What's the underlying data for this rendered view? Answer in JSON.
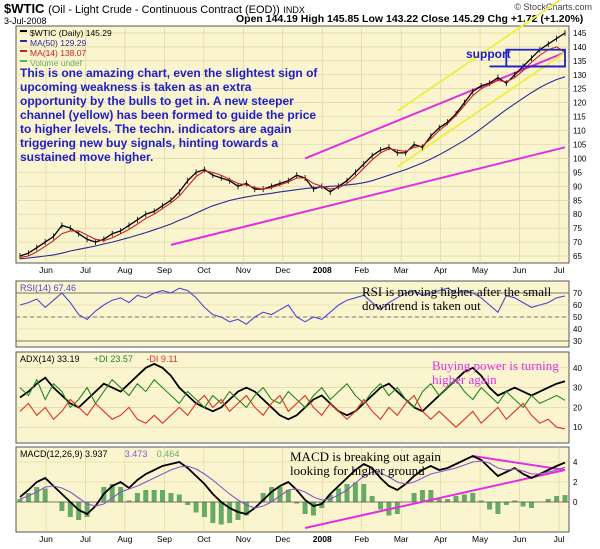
{
  "header": {
    "symbol": "$WTIC",
    "name": "(Oil - Light Crude - Continuous Contract (EOD))",
    "exchange": "INDX",
    "date": "3-Jul-2008",
    "ohlc": "Open 144.19  High 145.85  Low 143.22  Close 145.29  Chg +1.72 (+1.20%)",
    "watermark": "© StockCharts.com"
  },
  "colors": {
    "price": "#000000",
    "ma50": "#2a2a9a",
    "ma14": "#cc2020",
    "channel": "#e030e0",
    "yellow": "#eeee44",
    "rsi": "#4a4acc",
    "adx": "#000000",
    "plus_di": "#228822",
    "minus_di": "#dd3322",
    "macd": "#000000",
    "signal": "#8855cc",
    "hist": "#66aa66",
    "ann_blue": "#1f20c8",
    "ann_pink": "#e030e0"
  },
  "chart_data": [
    {
      "type": "line",
      "panel": "price",
      "legend": [
        {
          "label": "$WTIC (Daily) 145.29",
          "color": "#000000"
        },
        {
          "label": "MA(50) 129.29",
          "color": "#2a2a9a"
        },
        {
          "label": "MA(14) 138.07",
          "color": "#cc2020"
        },
        {
          "label": "Volume undef",
          "color": "#66aa66"
        }
      ],
      "x_labels": [
        "Jun",
        "Jul",
        "Aug",
        "Sep",
        "Oct",
        "Nov",
        "Dec",
        "2008",
        "Feb",
        "Mar",
        "Apr",
        "May",
        "Jun",
        "Jul"
      ],
      "y_ticks": [
        65,
        70,
        75,
        80,
        85,
        90,
        95,
        100,
        105,
        110,
        115,
        120,
        125,
        130,
        135,
        140,
        145
      ],
      "ylim": [
        62.5,
        147.5
      ],
      "series": [
        {
          "key": "close",
          "values": [
            65,
            66,
            68,
            70,
            72,
            76,
            75,
            73,
            71,
            70,
            71,
            73,
            74,
            76,
            78,
            80,
            81,
            83,
            85,
            88,
            92,
            95,
            96,
            94,
            93,
            92,
            90,
            91,
            89,
            89,
            90,
            91,
            92,
            94,
            93,
            89,
            90,
            88,
            90,
            92,
            95,
            98,
            101,
            103,
            104,
            102,
            102,
            105,
            104,
            108,
            111,
            113,
            116,
            120,
            124,
            126,
            127,
            129,
            127,
            130,
            133,
            136,
            139,
            141,
            143,
            145
          ]
        },
        {
          "key": "ma50",
          "values": [
            64,
            64.3,
            64.6,
            65,
            65.4,
            66,
            66.8,
            67.4,
            68,
            68.6,
            69.3,
            70,
            70.8,
            71.6,
            72.5,
            73.4,
            74.4,
            75.4,
            76.5,
            77.8,
            79,
            80.4,
            81.8,
            83,
            84,
            84.9,
            85.6,
            86.2,
            86.7,
            87.1,
            87.5,
            88,
            88.4,
            88.8,
            89.2,
            89.5,
            89.8,
            90,
            90.2,
            90.5,
            90.8,
            91.3,
            92,
            93,
            94,
            95,
            96,
            97.2,
            98.4,
            99.8,
            101.3,
            103,
            104.7,
            106.5,
            108.5,
            110.7,
            113,
            115.3,
            117.5,
            119.6,
            121.6,
            123.6,
            125.4,
            127,
            128.3,
            129.29
          ]
        },
        {
          "key": "ma14",
          "values": [
            64.5,
            65,
            66.5,
            68.5,
            70.5,
            73,
            74,
            74,
            72.5,
            71,
            70.5,
            71.5,
            73,
            74.5,
            76.5,
            78.5,
            80,
            82,
            84,
            86.5,
            90,
            93.5,
            95.5,
            95,
            94,
            92.5,
            91,
            90.5,
            89.5,
            89,
            89.5,
            90.5,
            91.5,
            93,
            93,
            91,
            90,
            89,
            89.5,
            91,
            93.5,
            96.5,
            99.5,
            102,
            103.5,
            103,
            102.5,
            104,
            104.5,
            107,
            110,
            112.5,
            115.5,
            119,
            122.5,
            125,
            126.5,
            128,
            127.5,
            129,
            131.5,
            134.5,
            137,
            139,
            140,
            138.07
          ]
        }
      ],
      "trendlines": [
        {
          "name": "lower-channel",
          "color": "#e030e0",
          "points": [
            [
              18,
              69
            ],
            [
              65,
              104
            ]
          ]
        },
        {
          "name": "upper-channel",
          "color": "#e030e0",
          "points": [
            [
              34,
              100
            ],
            [
              65,
              138
            ]
          ]
        },
        {
          "name": "yellow-lower",
          "color": "#eeee44",
          "points": [
            [
              45,
              97
            ],
            [
              65,
              138
            ]
          ]
        },
        {
          "name": "yellow-upper",
          "color": "#eeee44",
          "points": [
            [
              45,
              117
            ],
            [
              65,
              158
            ]
          ]
        }
      ],
      "annotations": [
        {
          "text": "This is one amazing chart, even the slightest sign of upcoming weakness is taken as an extra opportunity by the bulls to get in. A new steeper channel (yellow) has been formed to guide the price to higher levels. The techn. indicators are again triggering new buy signals, hinting towards a sustained move higher."
        },
        {
          "text": "support"
        }
      ]
    },
    {
      "type": "line",
      "panel": "rsi",
      "legend": [
        {
          "label": "RSI(14) 67.46",
          "color": "#4a4acc"
        }
      ],
      "y_ticks": [
        30,
        40,
        50,
        60,
        70
      ],
      "ylim": [
        25,
        80
      ],
      "series": [
        {
          "key": "rsi",
          "values": [
            60,
            62,
            65,
            58,
            64,
            70,
            62,
            52,
            48,
            55,
            60,
            64,
            66,
            62,
            68,
            66,
            70,
            72,
            70,
            74,
            72,
            66,
            58,
            52,
            50,
            46,
            48,
            44,
            50,
            54,
            52,
            56,
            60,
            50,
            46,
            50,
            48,
            54,
            60,
            64,
            66,
            68,
            62,
            56,
            62,
            66,
            70,
            72,
            68,
            70,
            72,
            74,
            70,
            72,
            70,
            66,
            60,
            54,
            68,
            66,
            62,
            58,
            60,
            62,
            66,
            67.46
          ]
        }
      ],
      "annotations": [
        {
          "text": "RSI is moving higher after the small downtrend is taken out"
        }
      ]
    },
    {
      "type": "line",
      "panel": "adx",
      "legend": [
        {
          "label": "ADX(14) 33.19",
          "color": "#000000"
        },
        {
          "label": "+DI 23.57",
          "color": "#228822"
        },
        {
          "label": "-DI 9.11",
          "color": "#dd3322"
        }
      ],
      "y_ticks": [
        10,
        20,
        30,
        40
      ],
      "ylim": [
        2,
        48
      ],
      "series": [
        {
          "key": "adx",
          "values": [
            25,
            28,
            32,
            35,
            30,
            26,
            22,
            20,
            24,
            28,
            32,
            30,
            28,
            32,
            36,
            40,
            42,
            40,
            36,
            30,
            26,
            22,
            20,
            18,
            20,
            24,
            28,
            30,
            28,
            24,
            20,
            16,
            14,
            16,
            20,
            24,
            26,
            22,
            18,
            16,
            18,
            22,
            26,
            30,
            32,
            28,
            24,
            20,
            18,
            22,
            26,
            30,
            34,
            38,
            40,
            36,
            30,
            26,
            28,
            30,
            28,
            26,
            28,
            30,
            32,
            33.19
          ]
        },
        {
          "key": "plus_di",
          "values": [
            30,
            26,
            34,
            24,
            32,
            28,
            20,
            24,
            30,
            22,
            28,
            34,
            30,
            26,
            32,
            28,
            34,
            30,
            26,
            22,
            28,
            24,
            20,
            26,
            22,
            28,
            24,
            20,
            26,
            30,
            24,
            22,
            28,
            24,
            20,
            26,
            30,
            24,
            28,
            32,
            26,
            22,
            28,
            32,
            26,
            30,
            24,
            20,
            28,
            32,
            26,
            30,
            34,
            28,
            24,
            30,
            26,
            22,
            28,
            24,
            20,
            26,
            22,
            24,
            26,
            23.57
          ]
        },
        {
          "key": "minus_di",
          "values": [
            18,
            22,
            16,
            20,
            14,
            18,
            24,
            20,
            16,
            22,
            18,
            14,
            16,
            20,
            14,
            12,
            16,
            12,
            16,
            20,
            16,
            22,
            26,
            20,
            24,
            18,
            22,
            26,
            20,
            16,
            22,
            26,
            18,
            22,
            26,
            20,
            16,
            22,
            18,
            14,
            18,
            24,
            18,
            14,
            20,
            16,
            22,
            26,
            18,
            14,
            18,
            14,
            10,
            14,
            18,
            12,
            16,
            20,
            14,
            18,
            22,
            16,
            12,
            14,
            10,
            9.11
          ]
        }
      ],
      "annotations": [
        {
          "text": "Buying power is turning higher again"
        }
      ]
    },
    {
      "type": "line",
      "panel": "macd",
      "legend": [
        {
          "label": "MACD(12,26,9) 3.937",
          "color": "#000000"
        },
        {
          "label": "3.473",
          "color": "#8855cc"
        },
        {
          "label": "0.464",
          "color": "#66aa66"
        }
      ],
      "x_labels": [
        "Jun",
        "Jul",
        "Aug",
        "Sep",
        "Oct",
        "Nov",
        "Dec",
        "2008",
        "Feb",
        "Mar",
        "Apr",
        "May",
        "Jun",
        "Jul"
      ],
      "y_ticks": [
        0,
        2,
        4
      ],
      "ylim": [
        -3,
        5.5
      ],
      "series": [
        {
          "key": "macd",
          "values": [
            0.5,
            1.2,
            2,
            2.4,
            1.6,
            0.8,
            0,
            -0.8,
            -1.2,
            -0.4,
            0.8,
            1.6,
            2,
            1.4,
            2.2,
            2.8,
            3.2,
            3.6,
            3.8,
            4,
            3.4,
            2.6,
            1.8,
            0.8,
            0,
            -0.6,
            -1,
            -1.2,
            -0.6,
            0.2,
            1,
            1.6,
            2,
            1.2,
            0.2,
            -0.4,
            -0.2,
            0.8,
            1.6,
            2.4,
            3.2,
            3.8,
            3.4,
            2.4,
            1.6,
            1.2,
            1.8,
            2.6,
            3.2,
            3.6,
            3.2,
            3.4,
            3.8,
            4.2,
            4.6,
            4.2,
            3.4,
            2.6,
            3,
            3.4,
            2.8,
            2.4,
            2.8,
            3.2,
            3.6,
            3.937
          ]
        },
        {
          "key": "signal",
          "values": [
            0.3,
            0.6,
            1,
            1.5,
            1.6,
            1.4,
            1,
            0.4,
            -0.2,
            -0.4,
            -0.2,
            0.4,
            1,
            1.3,
            1.6,
            2,
            2.4,
            2.8,
            3.2,
            3.5,
            3.6,
            3.3,
            2.8,
            2.2,
            1.5,
            0.8,
            0.2,
            -0.3,
            -0.6,
            -0.4,
            0,
            0.6,
            1.2,
            1.3,
            1,
            0.5,
            0.2,
            0.3,
            0.7,
            1.2,
            1.9,
            2.6,
            3,
            2.9,
            2.5,
            2,
            1.8,
            2,
            2.4,
            2.8,
            3,
            3.2,
            3.4,
            3.7,
            4,
            4.1,
            3.9,
            3.4,
            3.2,
            3.3,
            3.1,
            2.8,
            2.8,
            3,
            3.2,
            3.473
          ]
        }
      ],
      "trendlines": [
        {
          "name": "macd-support",
          "color": "#e030e0",
          "points": [
            [
              34,
              -2.6
            ],
            [
              65,
              3.2
            ]
          ]
        },
        {
          "name": "macd-downtrend",
          "color": "#e030e0",
          "points": [
            [
              54,
              4.6
            ],
            [
              65,
              3.2
            ]
          ]
        }
      ],
      "annotations": [
        {
          "text": "MACD is breaking out again looking for higher ground"
        }
      ]
    }
  ]
}
